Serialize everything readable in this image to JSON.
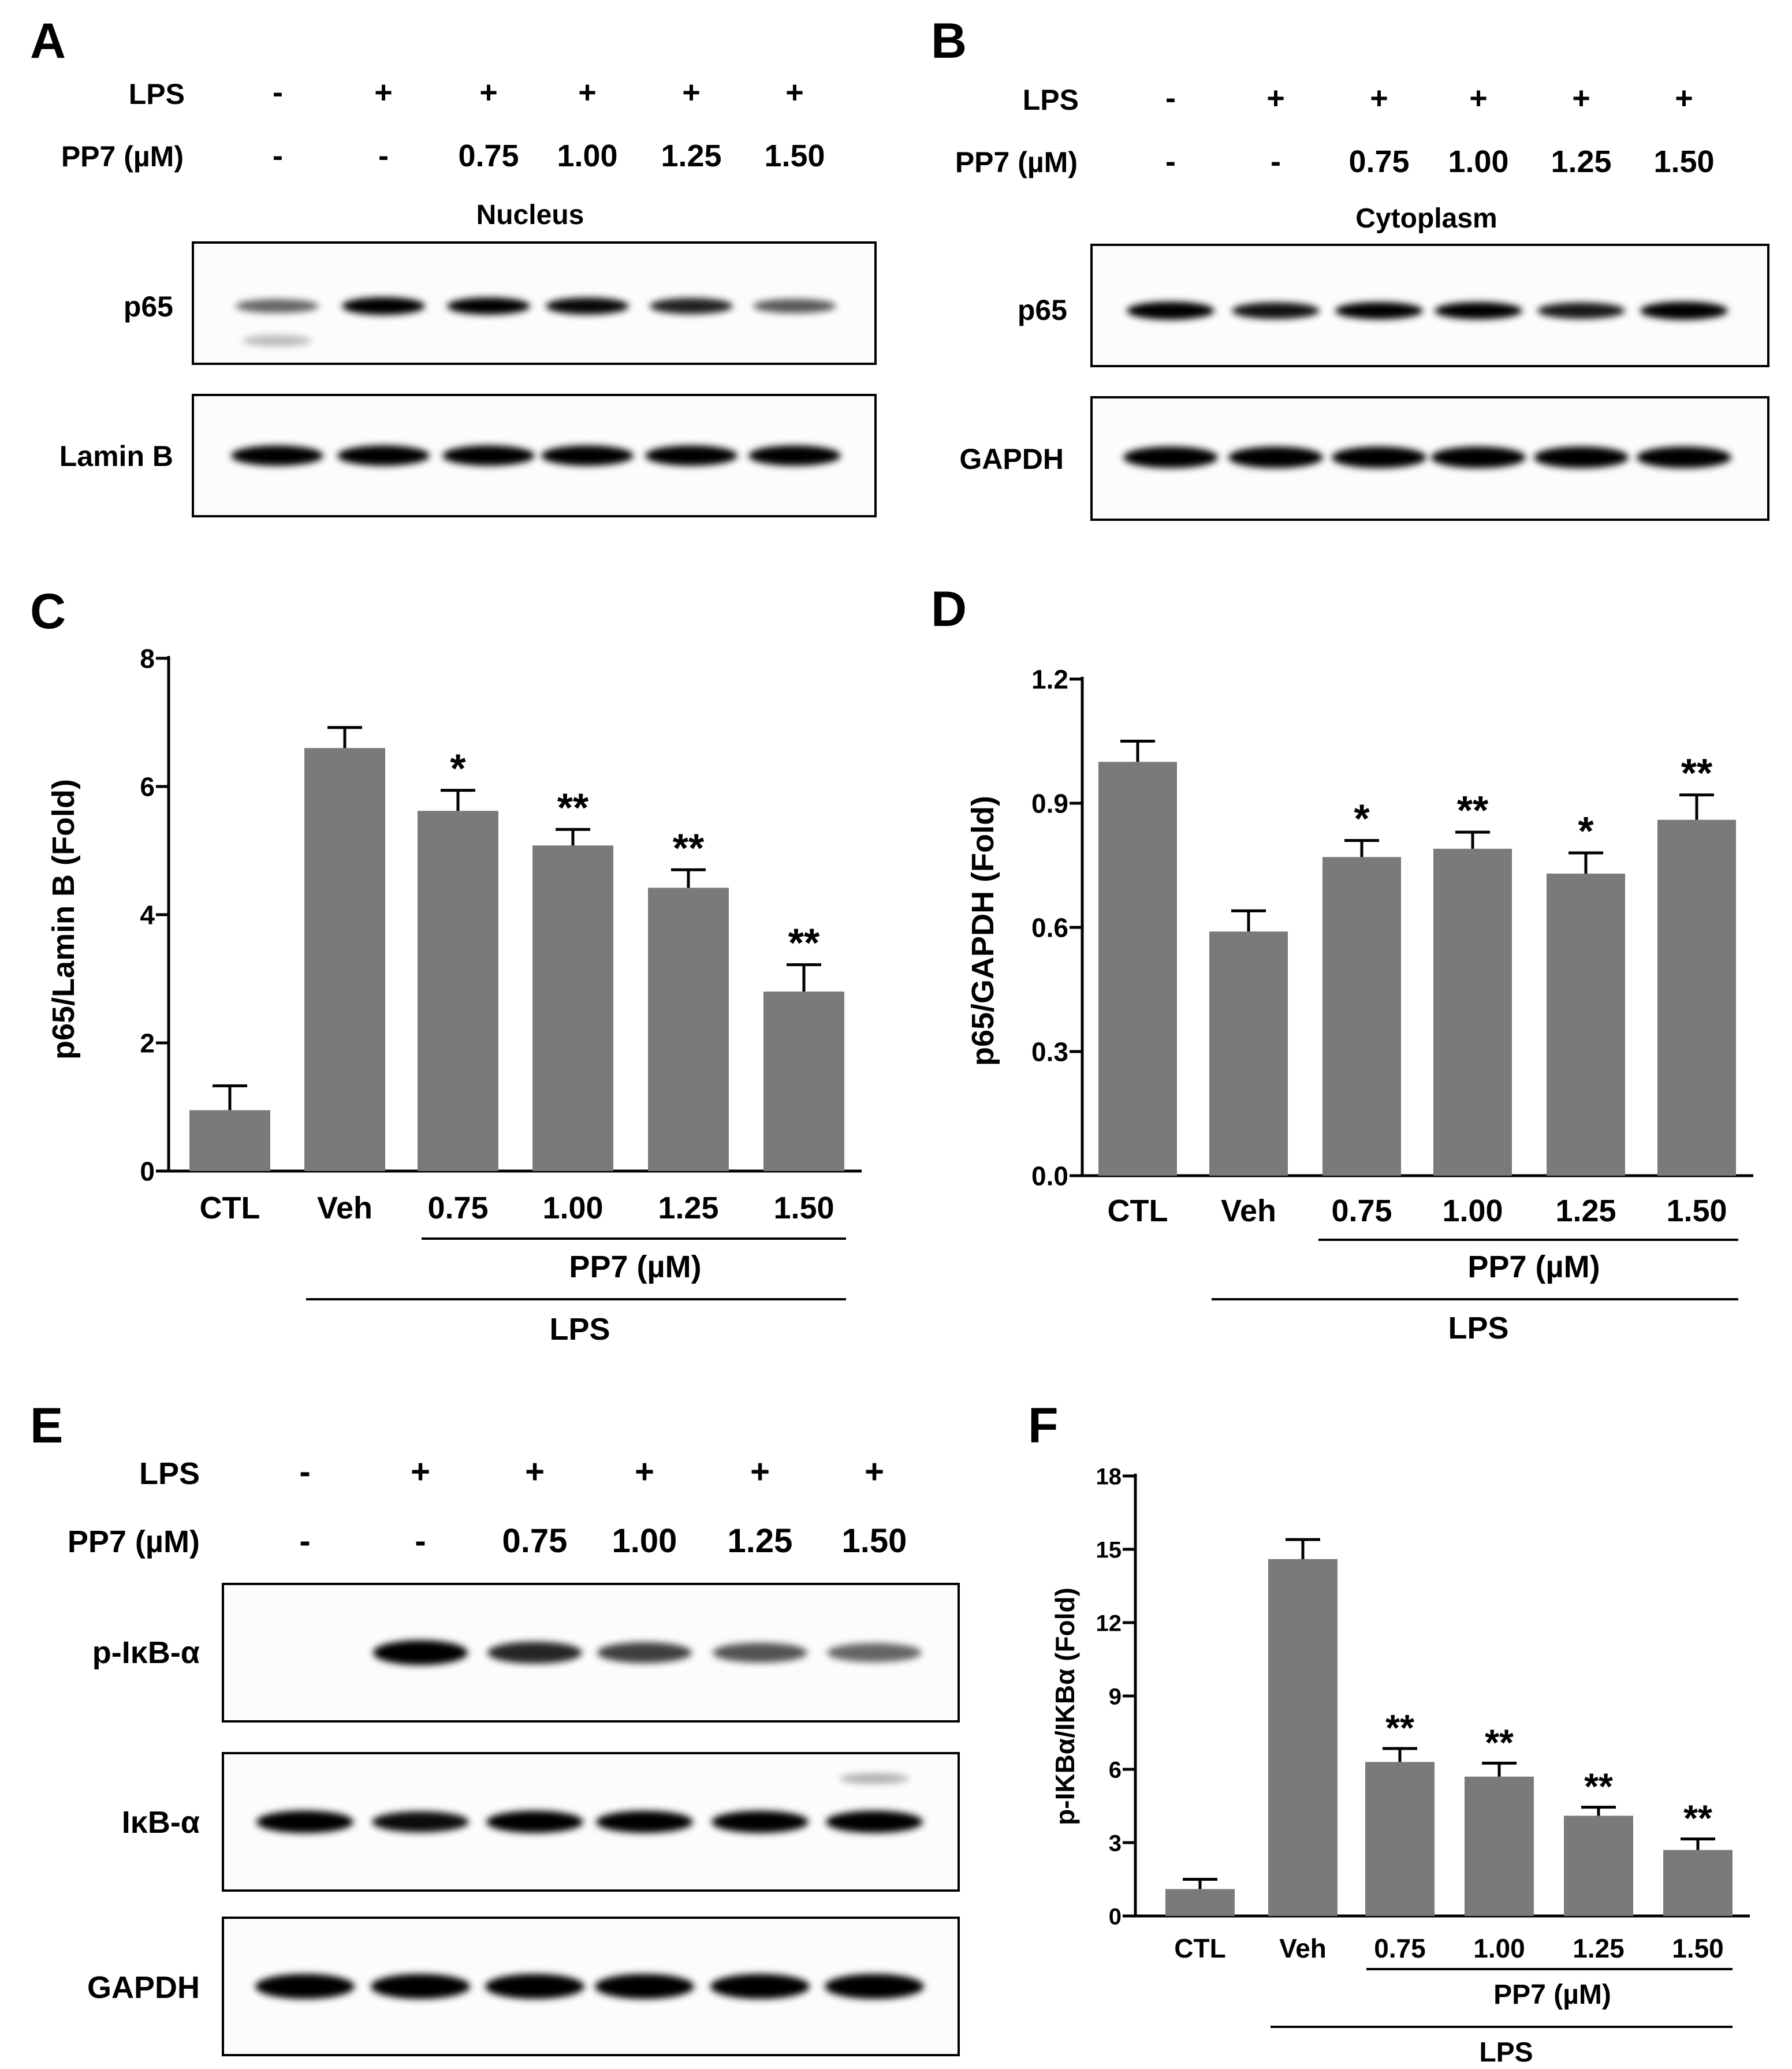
{
  "figure": {
    "panels": {
      "A": {
        "label": "A",
        "treat_row1_label": "LPS",
        "treat_row2_label": "PP7 (µM)",
        "lps": [
          "-",
          "+",
          "+",
          "+",
          "+",
          "+"
        ],
        "pp7": [
          "-",
          "-",
          "0.75",
          "1.00",
          "1.25",
          "1.50"
        ],
        "section": "Nucleus",
        "blots": [
          {
            "label": "p65",
            "intensity": [
              0.45,
              0.92,
              0.85,
              0.82,
              0.72,
              0.5
            ]
          },
          {
            "label": "Lamin B",
            "intensity": [
              0.95,
              0.95,
              0.95,
              0.95,
              0.95,
              0.95
            ]
          }
        ]
      },
      "B": {
        "label": "B",
        "treat_row1_label": "LPS",
        "treat_row2_label": "PP7 (µM)",
        "lps": [
          "-",
          "+",
          "+",
          "+",
          "+",
          "+"
        ],
        "pp7": [
          "-",
          "-",
          "0.75",
          "1.00",
          "1.25",
          "1.50"
        ],
        "section": "Cytoplasm",
        "blots": [
          {
            "label": "p65",
            "intensity": [
              0.95,
              0.78,
              0.85,
              0.85,
              0.75,
              0.95
            ]
          },
          {
            "label": "GAPDH",
            "intensity": [
              0.96,
              0.96,
              0.96,
              0.96,
              0.96,
              0.96
            ]
          }
        ]
      },
      "E": {
        "label": "E",
        "treat_row1_label": "LPS",
        "treat_row2_label": "PP7 (µM)",
        "lps": [
          "-",
          "+",
          "+",
          "+",
          "+",
          "+"
        ],
        "pp7": [
          "-",
          "-",
          "0.75",
          "1.00",
          "1.25",
          "1.50"
        ],
        "blots": [
          {
            "label": "p-IκB-α",
            "intensity": [
              0.0,
              0.95,
              0.7,
              0.6,
              0.52,
              0.45
            ]
          },
          {
            "label": "IκB-α",
            "intensity": [
              0.95,
              0.8,
              0.92,
              0.92,
              0.92,
              0.92
            ]
          },
          {
            "label": "GAPDH",
            "intensity": [
              0.96,
              0.96,
              0.96,
              0.96,
              0.96,
              0.96
            ]
          }
        ]
      }
    },
    "bar_fill": "#7a7a7a"
  },
  "chart_data": [
    {
      "panel": "C",
      "type": "bar",
      "categories": [
        "CTL",
        "Veh",
        "0.75",
        "1.00",
        "1.25",
        "1.50"
      ],
      "values": [
        0.95,
        6.6,
        5.62,
        5.08,
        4.42,
        2.8
      ],
      "errors": [
        0.38,
        0.32,
        0.32,
        0.25,
        0.28,
        0.42
      ],
      "significance": [
        "",
        "",
        "*",
        "**",
        "**",
        "**"
      ],
      "ylabel": "p65/Lamin B (Fold)",
      "ylim": [
        0,
        8
      ],
      "yticks": [
        "0",
        "2",
        "4",
        "6",
        "8"
      ],
      "group_labels": {
        "inner": "PP7 (µM)",
        "outer": "LPS"
      }
    },
    {
      "panel": "D",
      "type": "bar",
      "categories": [
        "CTL",
        "Veh",
        "0.75",
        "1.00",
        "1.25",
        "1.50"
      ],
      "values": [
        1.0,
        0.59,
        0.77,
        0.79,
        0.73,
        0.86
      ],
      "errors": [
        0.05,
        0.05,
        0.04,
        0.04,
        0.05,
        0.06
      ],
      "significance": [
        "",
        "",
        "*",
        "**",
        "*",
        "**"
      ],
      "ylabel": "p65/GAPDH (Fold)",
      "ylim": [
        0,
        1.2
      ],
      "yticks": [
        "0.0",
        "0.3",
        "0.6",
        "0.9",
        "1.2"
      ],
      "group_labels": {
        "inner": "PP7 (µM)",
        "outer": "LPS"
      }
    },
    {
      "panel": "F",
      "type": "bar",
      "categories": [
        "CTL",
        "Veh",
        "0.75",
        "1.00",
        "1.25",
        "1.50"
      ],
      "values": [
        1.1,
        14.6,
        6.3,
        5.7,
        4.1,
        2.7
      ],
      "errors": [
        0.4,
        0.8,
        0.55,
        0.55,
        0.35,
        0.45
      ],
      "significance": [
        "",
        "",
        "**",
        "**",
        "**",
        "**"
      ],
      "ylabel": "p-IKBα/IKBα (Fold)",
      "ylim": [
        0,
        18
      ],
      "yticks": [
        "0",
        "3",
        "6",
        "9",
        "12",
        "15",
        "18"
      ],
      "group_labels": {
        "inner": "PP7 (µM)",
        "outer": "LPS"
      }
    }
  ]
}
